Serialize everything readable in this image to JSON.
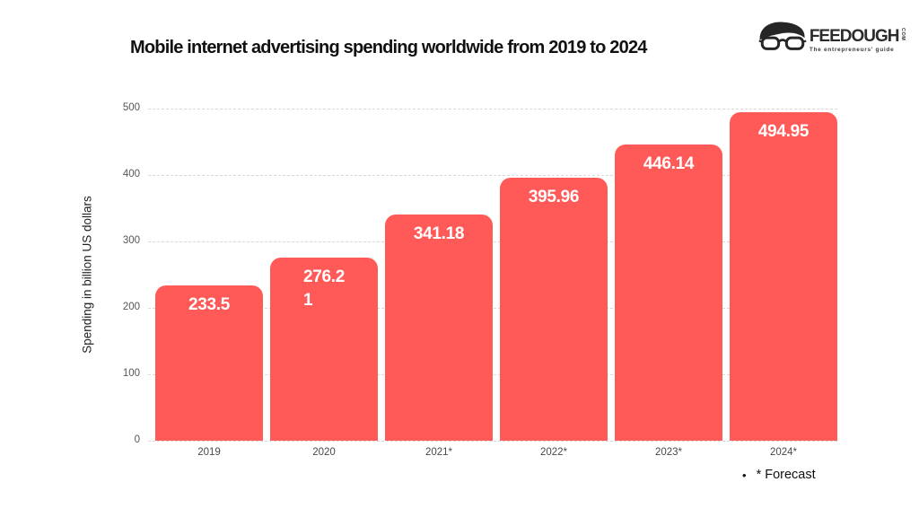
{
  "title": "Mobile internet advertising spending worldwide from 2019 to 2024",
  "logo": {
    "brand": "FEEDOUGH",
    "tld": "COM",
    "tagline": "The entrepreneurs' guide"
  },
  "chart_data": {
    "type": "bar",
    "title": "Mobile internet advertising spending worldwide from 2019 to 2024",
    "xlabel": "",
    "ylabel": "Spending in billion US dollars",
    "categories": [
      "2019",
      "2020",
      "2021*",
      "2022*",
      "2023*",
      "2024*"
    ],
    "values": [
      233.5,
      276.21,
      341.18,
      395.96,
      446.14,
      494.95
    ],
    "bar_labels": [
      "233.5",
      "276.2\n1",
      "341.18",
      "395.96",
      "446.14",
      "494.95"
    ],
    "ylim": [
      0,
      500
    ],
    "yticks": [
      0,
      100,
      200,
      300,
      400,
      500
    ],
    "grid": "horizontal-dashed",
    "legend": "none",
    "bar_color": "#FF5A58",
    "value_label_color": "#FFFFFF"
  },
  "footnote": {
    "bullet": "•",
    "text": "* Forecast"
  }
}
